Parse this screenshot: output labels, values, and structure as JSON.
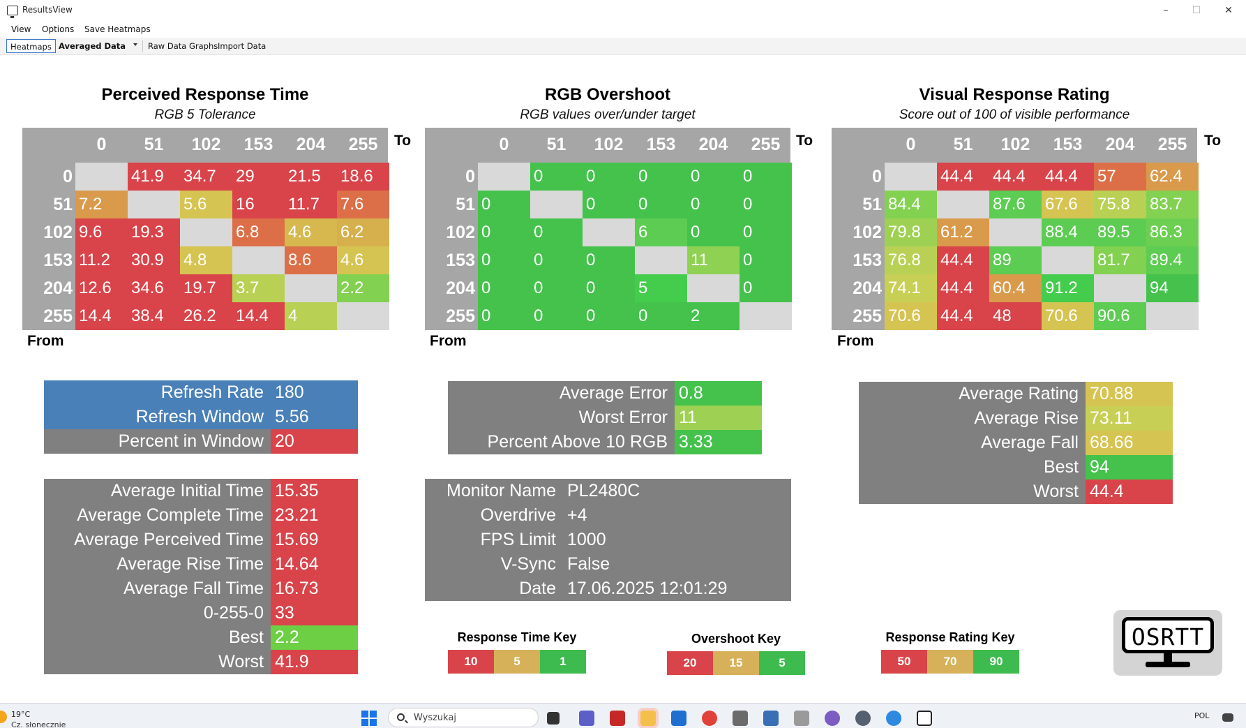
{
  "window": {
    "title": "ResultsView",
    "minimize": "–",
    "maximize": "☐",
    "close": "✕"
  },
  "menu": {
    "view": "View",
    "options": "Options",
    "save_heatmaps": "Save Heatmaps"
  },
  "tabs": {
    "heatmaps": "Heatmaps",
    "averaged": "Averaged Data",
    "raw": "Raw Data Graphs",
    "import": "Import Data"
  },
  "axis": {
    "to": "To",
    "from": "From"
  },
  "colors": {
    "red": "#d9444a",
    "orange_red": "#dc6f47",
    "orange": "#d99a4b",
    "yellow": "#d6c452",
    "yellow_green": "#b8d155",
    "light_green": "#83d151",
    "green": "#44c24c",
    "grey_cell": "#d9d9d9",
    "panel_blue": "#4a80b8",
    "panel_grey": "#808080",
    "header_grey": "#a6a6a6",
    "key_red": "#d9444a",
    "key_yellow": "#d6b15a",
    "key_green": "#3dbb4f"
  },
  "heatmaps": [
    {
      "title": "Perceived Response Time",
      "subtitle": "RGB 5 Tolerance",
      "columns": [
        "0",
        "51",
        "102",
        "153",
        "204",
        "255"
      ],
      "rows": [
        "0",
        "51",
        "102",
        "153",
        "204",
        "255"
      ],
      "cells": [
        [
          "",
          "41.9",
          "34.7",
          "29",
          "21.5",
          "18.6"
        ],
        [
          "7.2",
          "",
          "5.6",
          "16",
          "11.7",
          "7.6"
        ],
        [
          "9.6",
          "19.3",
          "",
          "6.8",
          "4.6",
          "6.2"
        ],
        [
          "11.2",
          "30.9",
          "4.8",
          "",
          "8.6",
          "4.6"
        ],
        [
          "12.6",
          "34.6",
          "19.7",
          "3.7",
          "",
          "2.2"
        ],
        [
          "14.4",
          "38.4",
          "26.2",
          "14.4",
          "4",
          ""
        ]
      ],
      "cell_colors": [
        [
          "#d9d9d9",
          "#d9444a",
          "#d9444a",
          "#d9444a",
          "#d9444a",
          "#d9444a"
        ],
        [
          "#d99a4b",
          "#d9d9d9",
          "#d6c452",
          "#d9444a",
          "#d9444a",
          "#dc6f47"
        ],
        [
          "#d9444a",
          "#d9444a",
          "#d9d9d9",
          "#dc6f47",
          "#d6b84f",
          "#d6b04d"
        ],
        [
          "#d9444a",
          "#d9444a",
          "#d6c452",
          "#d9d9d9",
          "#dc6f47",
          "#d6c452"
        ],
        [
          "#d9444a",
          "#d9444a",
          "#d9444a",
          "#b8d155",
          "#d9d9d9",
          "#83d151"
        ],
        [
          "#d9444a",
          "#d9444a",
          "#d9444a",
          "#d9444a",
          "#b8d155",
          "#d9d9d9"
        ]
      ]
    },
    {
      "title": "RGB Overshoot",
      "subtitle": "RGB values over/under target",
      "columns": [
        "0",
        "51",
        "102",
        "153",
        "204",
        "255"
      ],
      "rows": [
        "0",
        "51",
        "102",
        "153",
        "204",
        "255"
      ],
      "cells": [
        [
          "",
          "0",
          "0",
          "0",
          "0",
          "0"
        ],
        [
          "0",
          "",
          "0",
          "0",
          "0",
          "0"
        ],
        [
          "0",
          "0",
          "",
          "6",
          "0",
          "0"
        ],
        [
          "0",
          "0",
          "0",
          "",
          "11",
          "0"
        ],
        [
          "0",
          "0",
          "0",
          "5",
          "",
          "0"
        ],
        [
          "0",
          "0",
          "0",
          "0",
          "2",
          ""
        ]
      ],
      "cell_colors": [
        [
          "#d9d9d9",
          "#44c24c",
          "#44c24c",
          "#44c24c",
          "#44c24c",
          "#44c24c"
        ],
        [
          "#44c24c",
          "#d9d9d9",
          "#44c24c",
          "#44c24c",
          "#44c24c",
          "#44c24c"
        ],
        [
          "#44c24c",
          "#44c24c",
          "#d9d9d9",
          "#5ccc52",
          "#44c24c",
          "#44c24c"
        ],
        [
          "#44c24c",
          "#44c24c",
          "#44c24c",
          "#d9d9d9",
          "#8fd253",
          "#44c24c"
        ],
        [
          "#44c24c",
          "#44c24c",
          "#44c24c",
          "#44cc4c",
          "#d9d9d9",
          "#44c24c"
        ],
        [
          "#44c24c",
          "#44c24c",
          "#44c24c",
          "#44c24c",
          "#44c24c",
          "#d9d9d9"
        ]
      ]
    },
    {
      "title": "Visual Response Rating",
      "subtitle": "Score out of 100 of visible performance",
      "columns": [
        "0",
        "51",
        "102",
        "153",
        "204",
        "255"
      ],
      "rows": [
        "0",
        "51",
        "102",
        "153",
        "204",
        "255"
      ],
      "cells": [
        [
          "",
          "44.4",
          "44.4",
          "44.4",
          "57",
          "62.4"
        ],
        [
          "84.4",
          "",
          "87.6",
          "67.6",
          "75.8",
          "83.7"
        ],
        [
          "79.8",
          "61.2",
          "",
          "88.4",
          "89.5",
          "86.3"
        ],
        [
          "76.8",
          "44.4",
          "89",
          "",
          "81.7",
          "89.4"
        ],
        [
          "74.1",
          "44.4",
          "60.4",
          "91.2",
          "",
          "94"
        ],
        [
          "70.6",
          "44.4",
          "48",
          "70.6",
          "90.6",
          ""
        ]
      ],
      "cell_colors": [
        [
          "#d9d9d9",
          "#d9444a",
          "#d9444a",
          "#d9444a",
          "#dc6f47",
          "#d99a4b"
        ],
        [
          "#83d151",
          "#d9d9d9",
          "#5ccc52",
          "#d6c452",
          "#b8d155",
          "#83d151"
        ],
        [
          "#9ed153",
          "#d99a4b",
          "#d9d9d9",
          "#5ccc52",
          "#5ccc52",
          "#6ccf52"
        ],
        [
          "#b8d155",
          "#d9444a",
          "#5ccc52",
          "#d9d9d9",
          "#83d151",
          "#5ccc52"
        ],
        [
          "#c8cf55",
          "#d9444a",
          "#d99a4b",
          "#44cc4c",
          "#d9d9d9",
          "#44c24c"
        ],
        [
          "#d6c452",
          "#d9444a",
          "#d9444a",
          "#d6c452",
          "#5ccc52",
          "#d9d9d9"
        ]
      ]
    }
  ],
  "refresh_panel": [
    {
      "label": "Refresh Rate",
      "value": "180",
      "label_bg": "#4a80b8",
      "value_bg": "#4a80b8"
    },
    {
      "label": "Refresh Window",
      "value": "5.56",
      "label_bg": "#4a80b8",
      "value_bg": "#4a80b8"
    },
    {
      "label": "Percent in Window",
      "value": "20",
      "label_bg": "#808080",
      "value_bg": "#d9444a"
    }
  ],
  "time_panel": [
    {
      "label": "Average Initial Time",
      "value": "15.35",
      "value_bg": "#d9444a"
    },
    {
      "label": "Average Complete Time",
      "value": "23.21",
      "value_bg": "#d9444a"
    },
    {
      "label": "Average Perceived Time",
      "value": "15.69",
      "value_bg": "#d9444a"
    },
    {
      "label": "Average Rise Time",
      "value": "14.64",
      "value_bg": "#d9444a"
    },
    {
      "label": "Average Fall Time",
      "value": "16.73",
      "value_bg": "#d9444a"
    },
    {
      "label": "0-255-0",
      "value": "33",
      "value_bg": "#d9444a"
    },
    {
      "label": "Best",
      "value": "2.2",
      "value_bg": "#6ccf44"
    },
    {
      "label": "Worst",
      "value": "41.9",
      "value_bg": "#d9444a"
    }
  ],
  "error_panel": [
    {
      "label": "Average Error",
      "value": "0.8",
      "value_bg": "#44c24c"
    },
    {
      "label": "Worst Error",
      "value": "11",
      "value_bg": "#9ed153"
    },
    {
      "label": "Percent Above 10 RGB",
      "value": "3.33",
      "value_bg": "#44c24c"
    }
  ],
  "monitor_panel": [
    {
      "label": "Monitor Name",
      "value": "PL2480C"
    },
    {
      "label": "Overdrive",
      "value": "+4"
    },
    {
      "label": "FPS Limit",
      "value": "1000"
    },
    {
      "label": "V-Sync",
      "value": "False"
    },
    {
      "label": "Date",
      "value": "17.06.2025 12:01:29"
    }
  ],
  "rating_panel": [
    {
      "label": "Average Rating",
      "value": "70.88",
      "value_bg": "#d6c452"
    },
    {
      "label": "Average Rise",
      "value": "73.11",
      "value_bg": "#c8cf55"
    },
    {
      "label": "Average Fall",
      "value": "68.66",
      "value_bg": "#d6c452"
    },
    {
      "label": "Best",
      "value": "94",
      "value_bg": "#44c24c"
    },
    {
      "label": "Worst",
      "value": "44.4",
      "value_bg": "#d9444a"
    }
  ],
  "keys": [
    {
      "title": "Response Time Key",
      "values": [
        "10",
        "5",
        "1"
      ]
    },
    {
      "title": "Overshoot Key",
      "values": [
        "20",
        "15",
        "5"
      ]
    },
    {
      "title": "Response Rating Key",
      "values": [
        "50",
        "70",
        "90"
      ]
    }
  ],
  "logo": {
    "text": "OSRTT"
  },
  "taskbar": {
    "temp": "19°C",
    "weather": "Cz. słonecznie",
    "search": "Wyszukaj",
    "lang": "POL"
  }
}
